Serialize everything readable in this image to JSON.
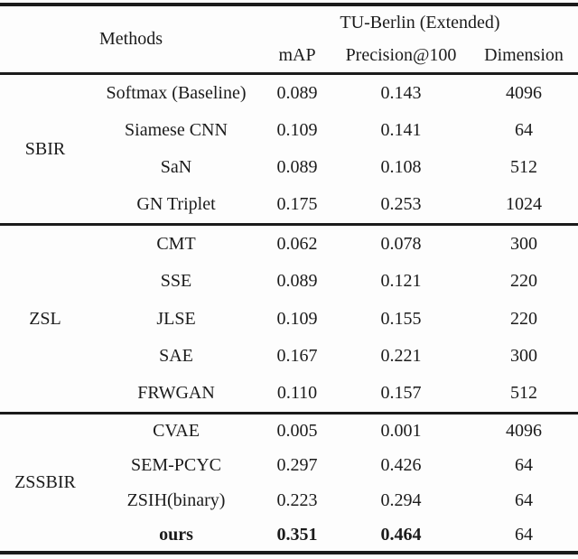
{
  "table": {
    "header": {
      "methods_label": "Methods",
      "dataset_label": "TU-Berlin (Extended)",
      "columns": [
        "mAP",
        "Precision@100",
        "Dimension"
      ]
    },
    "groups": [
      {
        "name": "SBIR",
        "rows": [
          {
            "method": "Softmax (Baseline)",
            "map": "0.089",
            "precision": "0.143",
            "dimension": "4096",
            "bold": false
          },
          {
            "method": "Siamese CNN",
            "map": "0.109",
            "precision": "0.141",
            "dimension": "64",
            "bold": false
          },
          {
            "method": "SaN",
            "map": "0.089",
            "precision": "0.108",
            "dimension": "512",
            "bold": false
          },
          {
            "method": "GN Triplet",
            "map": "0.175",
            "precision": "0.253",
            "dimension": "1024",
            "bold": false
          }
        ]
      },
      {
        "name": "ZSL",
        "rows": [
          {
            "method": "CMT",
            "map": "0.062",
            "precision": "0.078",
            "dimension": "300",
            "bold": false
          },
          {
            "method": "SSE",
            "map": "0.089",
            "precision": "0.121",
            "dimension": "220",
            "bold": false
          },
          {
            "method": "JLSE",
            "map": "0.109",
            "precision": "0.155",
            "dimension": "220",
            "bold": false
          },
          {
            "method": "SAE",
            "map": "0.167",
            "precision": "0.221",
            "dimension": "300",
            "bold": false
          },
          {
            "method": "FRWGAN",
            "map": "0.110",
            "precision": "0.157",
            "dimension": "512",
            "bold": false
          }
        ]
      },
      {
        "name": "ZSSBIR",
        "rows": [
          {
            "method": "CVAE",
            "map": "0.005",
            "precision": "0.001",
            "dimension": "4096",
            "bold": false
          },
          {
            "method": "SEM-PCYC",
            "map": "0.297",
            "precision": "0.426",
            "dimension": "64",
            "bold": false
          },
          {
            "method": "ZSIH(binary)",
            "map": "0.223",
            "precision": "0.294",
            "dimension": "64",
            "bold": false
          },
          {
            "method": "ours",
            "map": "0.351",
            "precision": "0.464",
            "dimension": "64",
            "bold": true
          }
        ]
      }
    ]
  }
}
